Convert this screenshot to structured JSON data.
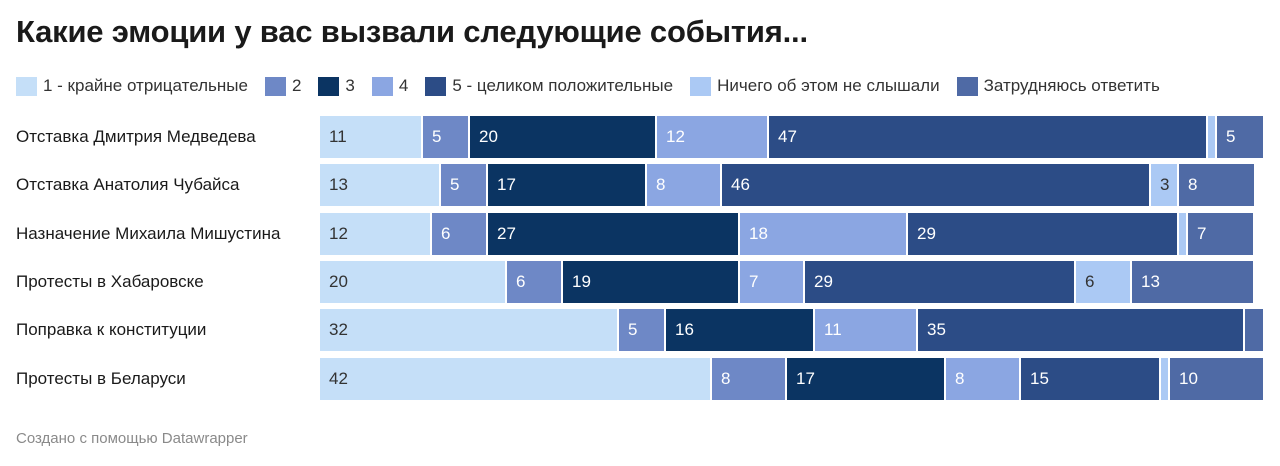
{
  "title": "Какие эмоции у вас вызвали следующие события...",
  "footer": "Создано с помощью Datawrapper",
  "chart_data": {
    "type": "bar",
    "orientation": "horizontal",
    "stacked": true,
    "title": "Какие эмоции у вас вызвали следующие события...",
    "categories": [
      "Отставка Дмитрия Медведева",
      "Отставка Анатолия Чубайса",
      "Назначение Михаила Мишустина",
      "Протесты в Хабаровске",
      "Поправка к конституции",
      "Протесты в Беларуси"
    ],
    "series": [
      {
        "name": "1 - крайне отрицательные",
        "color": "#c5dff8",
        "text_color": "#333333",
        "values": [
          11,
          13,
          12,
          20,
          32,
          42
        ]
      },
      {
        "name": "2",
        "color": "#6e88c6",
        "text_color": "#ffffff",
        "values": [
          5,
          5,
          6,
          6,
          5,
          8
        ]
      },
      {
        "name": "3",
        "color": "#0b3462",
        "text_color": "#ffffff",
        "values": [
          20,
          17,
          27,
          19,
          16,
          17
        ]
      },
      {
        "name": "4",
        "color": "#8ba6e2",
        "text_color": "#ffffff",
        "values": [
          12,
          8,
          18,
          7,
          11,
          8
        ]
      },
      {
        "name": "5 - целиком положительные",
        "color": "#2c4c86",
        "text_color": "#ffffff",
        "values": [
          47,
          46,
          29,
          29,
          35,
          15
        ]
      },
      {
        "name": "Ничего об этом не слышали",
        "color": "#abc9f4",
        "text_color": "#333333",
        "values": [
          1,
          3,
          1,
          6,
          0,
          1
        ]
      },
      {
        "name": "Затрудняюсь ответить",
        "color": "#4f6aa5",
        "text_color": "#ffffff",
        "values": [
          5,
          8,
          7,
          13,
          2,
          10
        ]
      }
    ],
    "value_labels": [
      [
        "11",
        "5",
        "20",
        "12",
        "47",
        "",
        "5"
      ],
      [
        "13",
        "5",
        "17",
        "8",
        "46",
        "3",
        "8"
      ],
      [
        "12",
        "6",
        "27",
        "18",
        "29",
        "",
        "7"
      ],
      [
        "20",
        "6",
        "19",
        "7",
        "29",
        "6",
        "13"
      ],
      [
        "32",
        "5",
        "16",
        "11",
        "35",
        "",
        ""
      ],
      [
        "42",
        "8",
        "17",
        "8",
        "15",
        "",
        "10"
      ]
    ],
    "xlim": [
      0,
      101
    ]
  }
}
